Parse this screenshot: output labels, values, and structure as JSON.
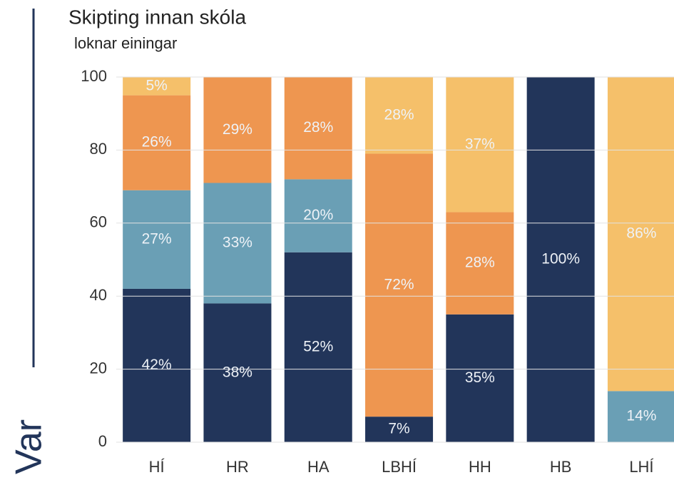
{
  "chart_data": {
    "type": "stacked_bar",
    "title": "Skipting innan skóla",
    "subtitle": "loknar einingar",
    "side_label": "Var",
    "categories": [
      "HÍ",
      "HR",
      "HA",
      "LBHÍ",
      "HH",
      "HB",
      "LHÍ"
    ],
    "series": [
      {
        "color": "#22355a",
        "values": [
          42,
          38,
          52,
          7,
          35,
          100,
          null
        ],
        "value_labels": [
          "42%",
          "38%",
          "52%",
          "7%",
          "35%",
          "100%",
          null
        ]
      },
      {
        "color": "#6a9fb5",
        "values": [
          27,
          33,
          20,
          null,
          null,
          null,
          14
        ],
        "value_labels": [
          "27%",
          "33%",
          "20%",
          null,
          null,
          null,
          "14%"
        ]
      },
      {
        "color": "#ee9650",
        "values": [
          26,
          29,
          28,
          72,
          28,
          null,
          null
        ],
        "value_labels": [
          "26%",
          "29%",
          "28%",
          "72%",
          "28%",
          null,
          null
        ]
      },
      {
        "color": "#f5c06a",
        "values": [
          5,
          null,
          null,
          28,
          37,
          null,
          86
        ],
        "value_labels": [
          "5%",
          null,
          null,
          "28%",
          "37%",
          null,
          "86%"
        ]
      }
    ],
    "ylim": [
      0,
      100
    ],
    "yticks": [
      0,
      20,
      40,
      60,
      80,
      100
    ],
    "grid": true
  }
}
